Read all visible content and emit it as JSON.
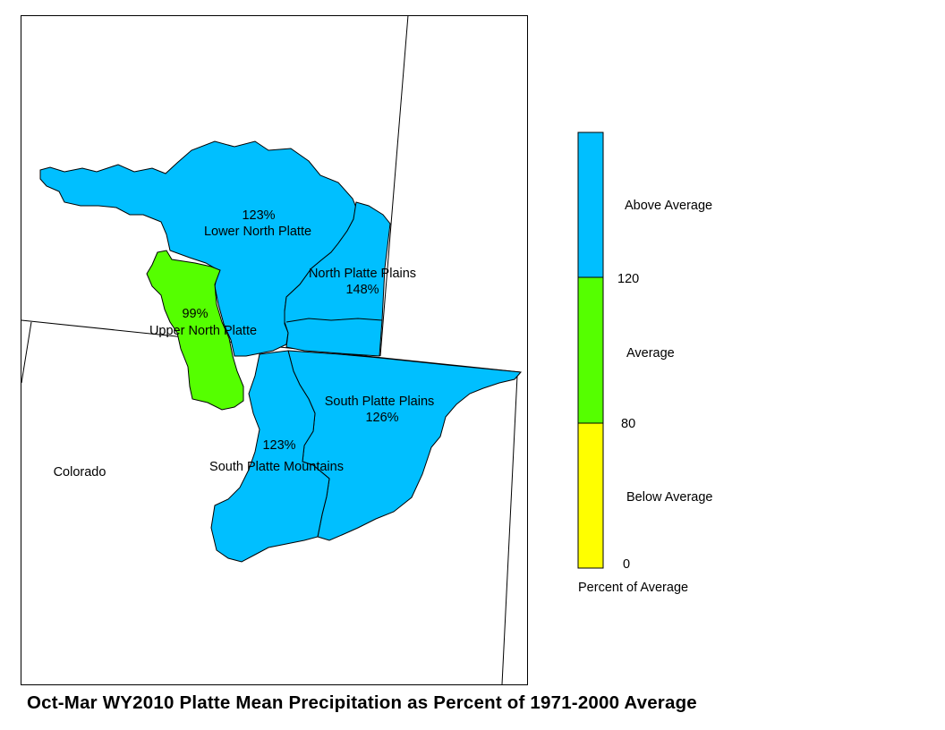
{
  "map": {
    "state_label": "Colorado",
    "basins": [
      {
        "name": "Lower North Platte",
        "percent": "123%",
        "category": "above",
        "color": "#00bfff"
      },
      {
        "name": "North Platte Plains",
        "percent": "148%",
        "category": "above",
        "color": "#00bfff"
      },
      {
        "name": "Upper North Platte",
        "percent": "99%",
        "category": "average",
        "color": "#55ff00"
      },
      {
        "name": "South Platte Plains",
        "percent": "126%",
        "category": "above",
        "color": "#00bfff"
      },
      {
        "name": "South Platte Mountains",
        "percent": "123%",
        "category": "above",
        "color": "#00bfff"
      }
    ]
  },
  "legend": {
    "title": "Percent of Average",
    "classes": [
      {
        "label": "Above Average",
        "color": "#00bfff",
        "range": [
          120,
          null
        ]
      },
      {
        "label": "Average",
        "color": "#55ff00",
        "range": [
          80,
          120
        ]
      },
      {
        "label": "Below Average",
        "color": "#ffff00",
        "range": [
          0,
          80
        ]
      }
    ],
    "breaks": [
      "120",
      "80",
      "0"
    ]
  },
  "caption": "Oct-Mar WY2010 Platte Mean Precipitation as Percent of 1971-2000 Average"
}
